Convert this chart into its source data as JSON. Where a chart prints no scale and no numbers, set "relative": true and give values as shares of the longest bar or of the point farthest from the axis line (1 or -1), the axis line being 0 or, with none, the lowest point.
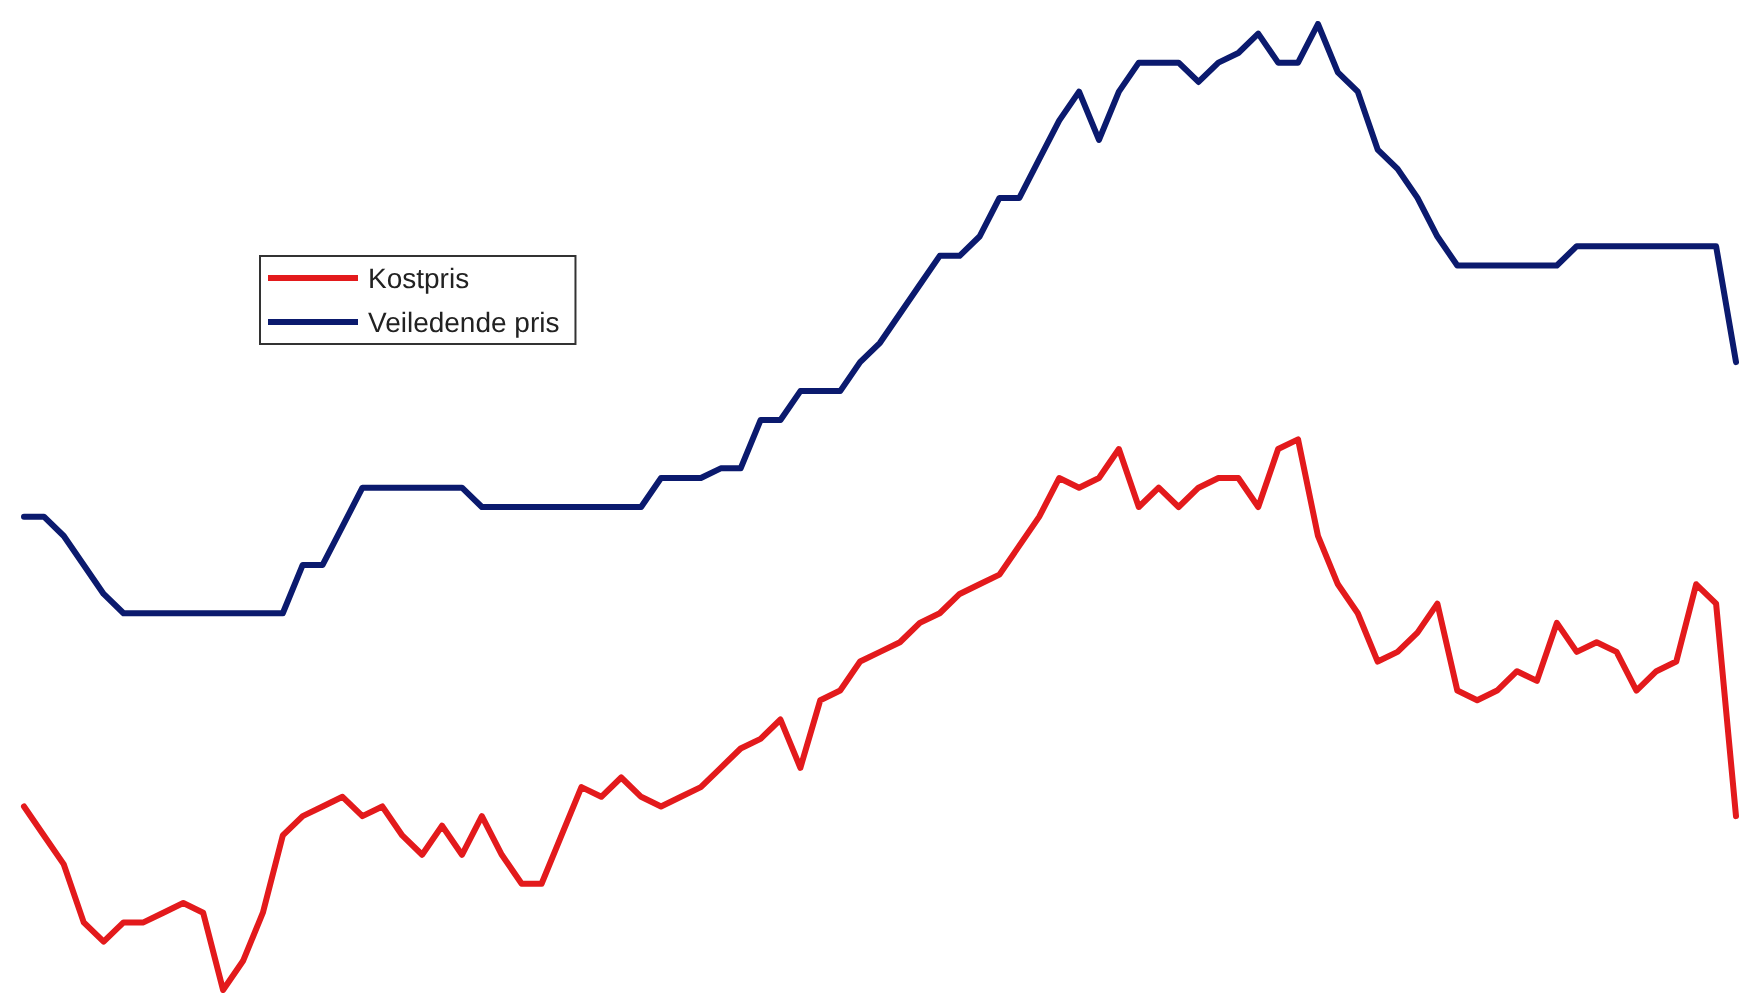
{
  "chart_data": {
    "type": "line",
    "relative": true,
    "legend": "left",
    "marker": "none",
    "line_style": "solid",
    "grid": false,
    "categories": [
      null,
      null,
      null,
      null,
      null,
      null,
      null,
      null,
      null,
      null,
      null,
      null,
      null,
      null,
      null,
      null,
      null,
      null,
      null,
      null,
      null,
      null,
      null,
      null,
      null,
      null,
      null,
      null,
      null,
      null,
      null,
      null,
      null,
      null,
      null,
      null,
      null,
      null,
      null,
      null,
      null,
      null,
      null,
      null,
      null,
      null,
      null,
      null,
      null,
      null,
      null,
      null,
      null,
      null,
      null,
      null,
      null,
      null,
      null,
      null,
      null,
      null,
      null,
      null,
      null,
      null,
      null,
      null,
      null,
      null,
      null,
      null,
      null,
      null,
      null,
      null,
      null,
      null,
      null,
      null,
      null,
      null,
      null,
      null,
      null,
      null,
      null
    ],
    "series": [
      {
        "name": "Kostpris",
        "color": "#e31a1c",
        "values": [
          0.19,
          0.16,
          0.13,
          0.07,
          0.05,
          0.07,
          0.07,
          0.08,
          0.09,
          0.08,
          0,
          0.03,
          0.08,
          0.16,
          0.18,
          0.19,
          0.2,
          0.18,
          0.19,
          0.16,
          0.14,
          0.17,
          0.14,
          0.18,
          0.14,
          0.11,
          0.11,
          0.16,
          0.21,
          0.2,
          0.22,
          0.2,
          0.19,
          0.2,
          0.21,
          0.23,
          0.25,
          0.26,
          0.28,
          0.23,
          0.3,
          0.31,
          0.34,
          0.35,
          0.36,
          0.38,
          0.39,
          0.41,
          0.42,
          0.43,
          0.46,
          0.49,
          0.53,
          0.52,
          0.53,
          0.56,
          0.5,
          0.52,
          0.5,
          0.52,
          0.53,
          0.53,
          0.5,
          0.56,
          0.57,
          0.47,
          0.42,
          0.39,
          0.34,
          0.35,
          0.37,
          0.4,
          0.31,
          0.3,
          0.31,
          0.33,
          0.32,
          0.38,
          0.35,
          0.36,
          0.35,
          0.31,
          0.33,
          0.34,
          0.42,
          0.4,
          0.18
        ]
      },
      {
        "name": "Veiledende pris",
        "color": "#0b1a6e",
        "values": [
          0.49,
          0.49,
          0.47,
          0.44,
          0.41,
          0.39,
          0.39,
          0.39,
          0.39,
          0.39,
          0.39,
          0.39,
          0.39,
          0.39,
          0.44,
          0.44,
          0.48,
          0.52,
          0.52,
          0.52,
          0.52,
          0.52,
          0.52,
          0.5,
          0.5,
          0.5,
          0.5,
          0.5,
          0.5,
          0.5,
          0.5,
          0.5,
          0.53,
          0.53,
          0.53,
          0.54,
          0.54,
          0.59,
          0.59,
          0.62,
          0.62,
          0.62,
          0.65,
          0.67,
          0.7,
          0.73,
          0.76,
          0.76,
          0.78,
          0.82,
          0.82,
          0.86,
          0.9,
          0.93,
          0.88,
          0.93,
          0.96,
          0.96,
          0.96,
          0.94,
          0.96,
          0.97,
          0.99,
          0.96,
          0.96,
          1,
          0.95,
          0.93,
          0.87,
          0.85,
          0.82,
          0.78,
          0.75,
          0.75,
          0.75,
          0.75,
          0.75,
          0.75,
          0.77,
          0.77,
          0.77,
          0.77,
          0.77,
          0.77,
          0.77,
          0.77,
          0.65
        ]
      }
    ]
  }
}
